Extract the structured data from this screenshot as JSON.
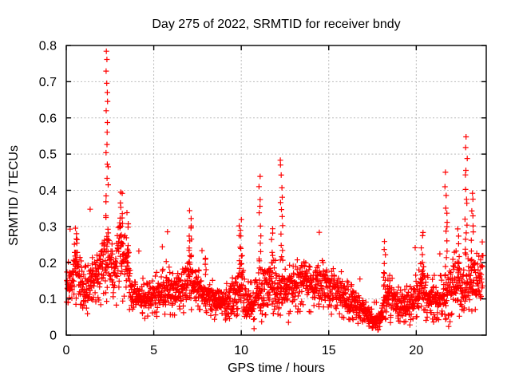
{
  "window": {
    "background": "#ffffff"
  },
  "style": {
    "marker_color": "#ff0000",
    "grid_color": "#b9b9b9",
    "frame_color": "#000000",
    "text_color": "#000000"
  },
  "chart_data": {
    "type": "scatter",
    "title": "Day 275 of 2022, SRMTID for receiver bndy",
    "xlabel": "GPS time / hours",
    "ylabel": "SRMTID / TECUs",
    "xlim": [
      0,
      24
    ],
    "ylim": [
      0,
      0.8
    ],
    "xticks": {
      "values": [
        0,
        5,
        10,
        15,
        20
      ],
      "labels": [
        "0",
        "5",
        "10",
        "15",
        "20"
      ]
    },
    "yticks": {
      "values": [
        0,
        0.1,
        0.2,
        0.3,
        0.4,
        0.5,
        0.6,
        0.7,
        0.8
      ],
      "labels": [
        "0",
        "0.1",
        "0.2",
        "0.3",
        "0.4",
        "0.5",
        "0.6",
        "0.7",
        "0.8"
      ]
    },
    "grid": true,
    "legend": "none",
    "marker": {
      "shape": "plus",
      "color": "#ff0000",
      "size": 7
    },
    "data_span_hours": [
      0,
      23.82
    ],
    "sampling": {
      "n_points": 2150,
      "seed": 20220275
    },
    "baseline_envelope": {
      "format": [
        "hour",
        "mean_tecus",
        "spread_tecus"
      ],
      "points": [
        [
          0.0,
          0.13,
          0.045
        ],
        [
          0.3,
          0.15,
          0.055
        ],
        [
          0.55,
          0.19,
          0.065
        ],
        [
          0.8,
          0.14,
          0.05
        ],
        [
          1.05,
          0.11,
          0.045
        ],
        [
          1.35,
          0.15,
          0.055
        ],
        [
          1.7,
          0.16,
          0.055
        ],
        [
          2.0,
          0.19,
          0.065
        ],
        [
          2.35,
          0.21,
          0.07
        ],
        [
          2.7,
          0.16,
          0.055
        ],
        [
          3.1,
          0.22,
          0.08
        ],
        [
          3.45,
          0.19,
          0.07
        ],
        [
          3.8,
          0.12,
          0.045
        ],
        [
          4.3,
          0.1,
          0.035
        ],
        [
          5.0,
          0.11,
          0.035
        ],
        [
          5.7,
          0.13,
          0.045
        ],
        [
          6.4,
          0.12,
          0.04
        ],
        [
          7.1,
          0.16,
          0.06
        ],
        [
          7.7,
          0.12,
          0.04
        ],
        [
          8.3,
          0.1,
          0.035
        ],
        [
          9.0,
          0.09,
          0.035
        ],
        [
          9.6,
          0.11,
          0.045
        ],
        [
          10.0,
          0.14,
          0.06
        ],
        [
          10.45,
          0.08,
          0.035
        ],
        [
          10.9,
          0.11,
          0.05
        ],
        [
          11.3,
          0.12,
          0.055
        ],
        [
          11.7,
          0.14,
          0.06
        ],
        [
          12.1,
          0.12,
          0.05
        ],
        [
          12.6,
          0.13,
          0.055
        ],
        [
          13.1,
          0.14,
          0.05
        ],
        [
          13.6,
          0.15,
          0.05
        ],
        [
          14.1,
          0.14,
          0.05
        ],
        [
          14.6,
          0.15,
          0.05
        ],
        [
          15.1,
          0.13,
          0.045
        ],
        [
          15.6,
          0.115,
          0.04
        ],
        [
          16.1,
          0.1,
          0.035
        ],
        [
          16.6,
          0.08,
          0.03
        ],
        [
          17.1,
          0.06,
          0.025
        ],
        [
          17.55,
          0.04,
          0.018
        ],
        [
          17.85,
          0.035,
          0.018
        ],
        [
          18.15,
          0.09,
          0.05
        ],
        [
          18.45,
          0.11,
          0.05
        ],
        [
          18.8,
          0.09,
          0.035
        ],
        [
          19.3,
          0.08,
          0.03
        ],
        [
          19.8,
          0.1,
          0.04
        ],
        [
          20.3,
          0.13,
          0.055
        ],
        [
          20.8,
          0.1,
          0.04
        ],
        [
          21.3,
          0.095,
          0.04
        ],
        [
          21.8,
          0.12,
          0.055
        ],
        [
          22.2,
          0.14,
          0.06
        ],
        [
          22.6,
          0.13,
          0.055
        ],
        [
          23.0,
          0.13,
          0.06
        ],
        [
          23.3,
          0.16,
          0.065
        ],
        [
          23.6,
          0.15,
          0.055
        ],
        [
          23.82,
          0.19,
          0.055
        ]
      ]
    },
    "spikes": {
      "format": [
        "hour",
        "peak_tecus",
        "base_tecus",
        "n_points"
      ],
      "points": [
        [
          0.55,
          0.3,
          0.2,
          8
        ],
        [
          2.33,
          0.78,
          0.26,
          22
        ],
        [
          3.15,
          0.4,
          0.26,
          12
        ],
        [
          3.5,
          0.33,
          0.24,
          6
        ],
        [
          7.08,
          0.335,
          0.2,
          14
        ],
        [
          7.95,
          0.22,
          0.16,
          5
        ],
        [
          9.95,
          0.325,
          0.18,
          12
        ],
        [
          11.05,
          0.43,
          0.18,
          12
        ],
        [
          11.75,
          0.3,
          0.2,
          6
        ],
        [
          12.3,
          0.49,
          0.2,
          14
        ],
        [
          18.2,
          0.26,
          0.13,
          8
        ],
        [
          20.35,
          0.29,
          0.15,
          8
        ],
        [
          21.7,
          0.44,
          0.17,
          12
        ],
        [
          22.4,
          0.3,
          0.18,
          6
        ],
        [
          22.85,
          0.55,
          0.22,
          14
        ],
        [
          23.2,
          0.4,
          0.2,
          10
        ]
      ]
    }
  }
}
